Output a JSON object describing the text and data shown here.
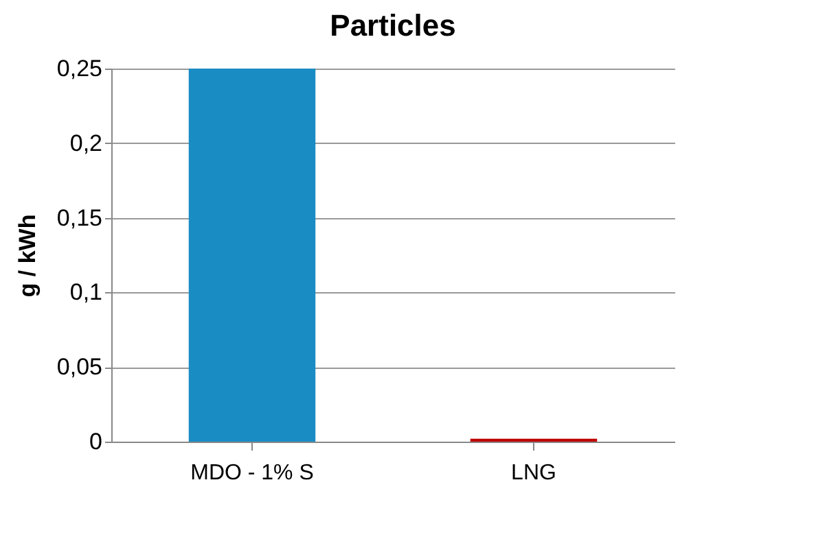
{
  "chart_data": {
    "type": "bar",
    "title": "Particles",
    "ylabel": "g / kWh",
    "categories": [
      "MDO - 1% S",
      "LNG"
    ],
    "values": [
      0.25,
      0.002
    ],
    "colors": [
      "#1a8cc4",
      "#c00000"
    ],
    "ylim": [
      0,
      0.25
    ],
    "yticks": [
      {
        "value": 0,
        "label": "0"
      },
      {
        "value": 0.05,
        "label": "0,05"
      },
      {
        "value": 0.1,
        "label": "0,1"
      },
      {
        "value": 0.15,
        "label": "0,15"
      },
      {
        "value": 0.2,
        "label": "0,2"
      },
      {
        "value": 0.25,
        "label": "0,25"
      }
    ],
    "grid": "y"
  }
}
